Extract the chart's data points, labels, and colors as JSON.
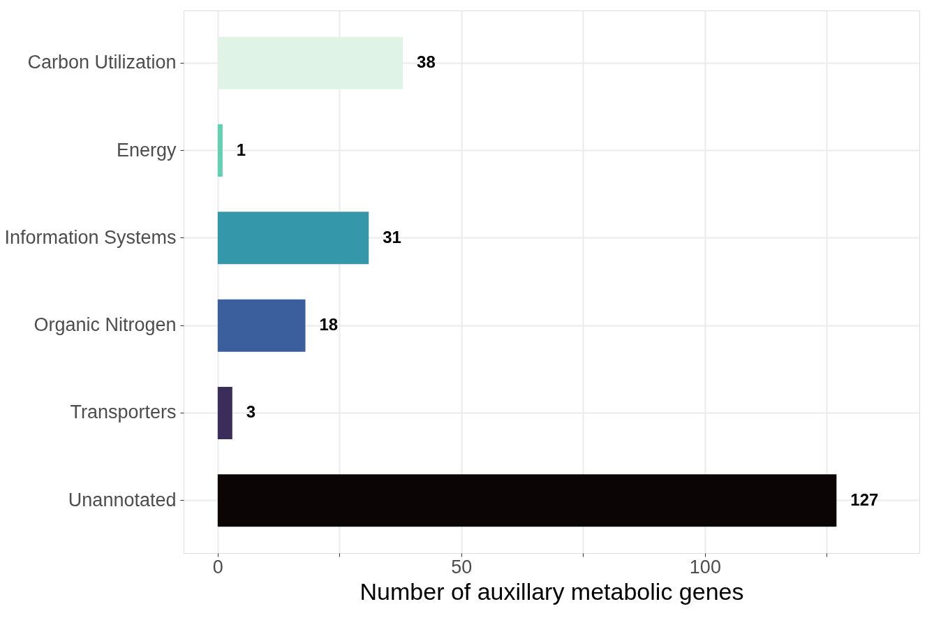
{
  "chart_data": {
    "type": "bar",
    "orientation": "horizontal",
    "xlabel": "Number of auxillary metabolic genes",
    "categories": [
      "Carbon Utilization",
      "Energy",
      "Information Systems",
      "Organic Nitrogen",
      "Transporters",
      "Unannotated"
    ],
    "values": [
      38,
      1,
      31,
      18,
      3,
      127
    ],
    "colors": [
      "#dff4e6",
      "#5fd0b0",
      "#3597aa",
      "#3b5e9c",
      "#3b2d5a",
      "#0c0505"
    ],
    "xlim": [
      -7,
      144
    ],
    "xticks": [
      0,
      {
        "value": 25,
        "label": null
      },
      50,
      {
        "value": 75,
        "label": null
      },
      100,
      {
        "value": 125,
        "label": null
      }
    ],
    "data_labels": true,
    "grid": true
  }
}
